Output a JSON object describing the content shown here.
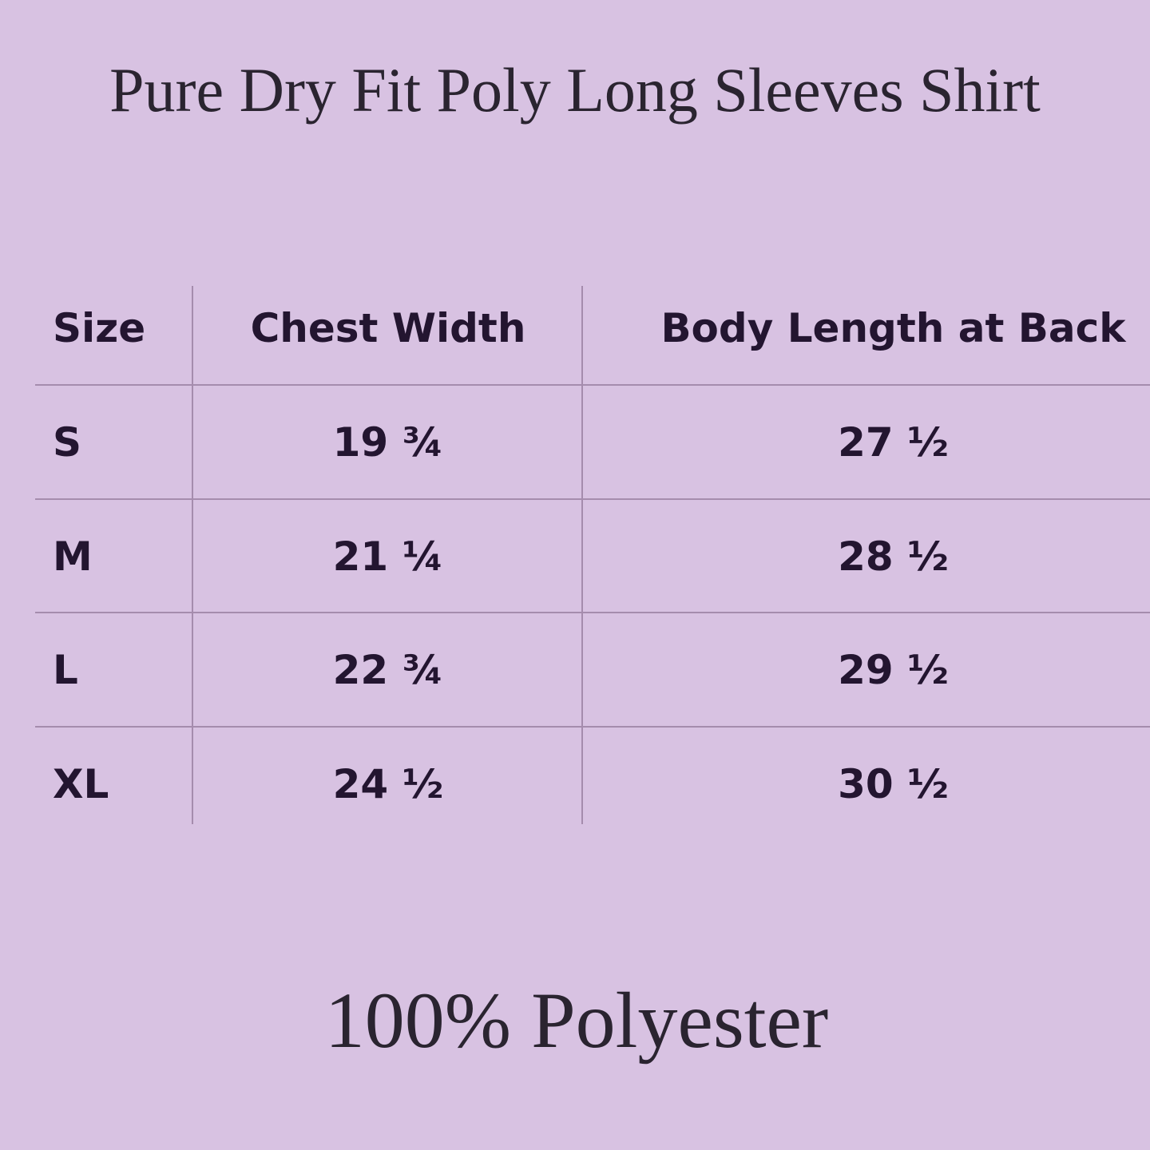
{
  "title": "Pure Dry Fit Poly Long Sleeves Shirt",
  "table": {
    "headers": [
      "Size",
      "Chest Width",
      "Body Length at Back"
    ],
    "rows": [
      [
        "S",
        "19 ¾",
        "27 ½"
      ],
      [
        "M",
        "21 ¼",
        "28 ½"
      ],
      [
        "L",
        "22 ¾",
        "29 ½"
      ],
      [
        "XL",
        "24 ½",
        "30 ½"
      ]
    ]
  },
  "footer": "100% Polyester",
  "colors": {
    "background": "#d8c2e2",
    "text": "#231530",
    "grid": "#a58cad"
  }
}
